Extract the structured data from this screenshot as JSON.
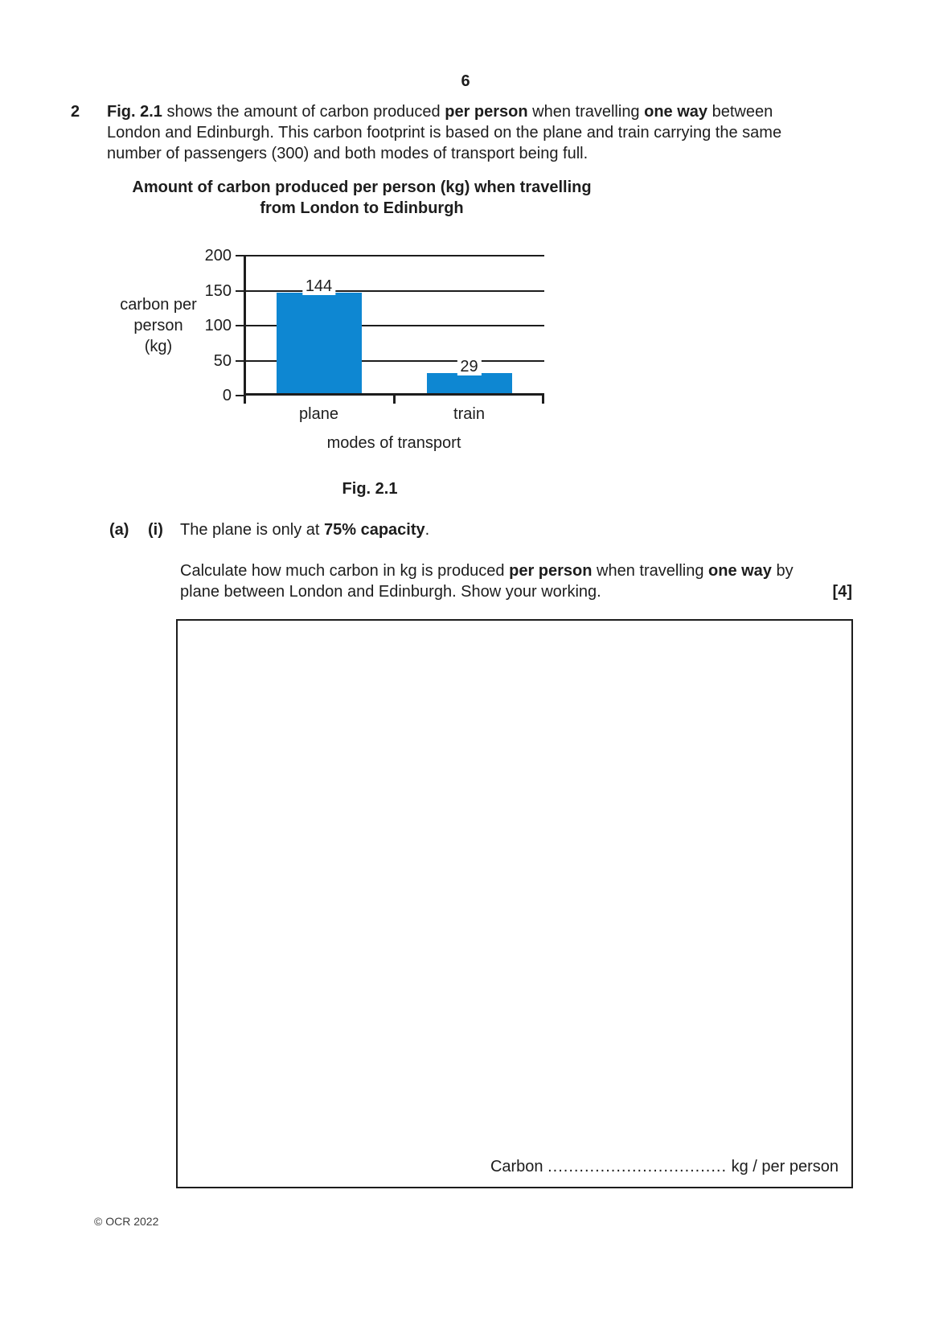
{
  "page": {
    "number": "6",
    "footer": "© OCR 2022"
  },
  "question": {
    "number": "2",
    "intro_lines": [
      [
        {
          "t": "Fig. 2.1",
          "b": true
        },
        {
          "t": " shows the amount of carbon produced ",
          "b": false
        },
        {
          "t": "per person",
          "b": true
        },
        {
          "t": " when travelling ",
          "b": false
        },
        {
          "t": "one way",
          "b": true
        },
        {
          "t": " between",
          "b": false
        }
      ],
      [
        {
          "t": "London and Edinburgh. This carbon footprint is based on the plane and train carrying the same",
          "b": false
        }
      ],
      [
        {
          "t": "number of passengers (300) and both modes of transport being full.",
          "b": false
        }
      ]
    ]
  },
  "chart_data": {
    "type": "bar",
    "title": "Amount of carbon produced per person (kg) when travelling from London to Edinburgh",
    "title_lines": [
      "Amount of carbon produced per person (kg) when travelling",
      "from London to Edinburgh"
    ],
    "ylabel": "carbon per person (kg)",
    "ylabel_lines": [
      "carbon per",
      "person",
      "(kg)"
    ],
    "xlabel": "modes of transport",
    "categories": [
      "plane",
      "train"
    ],
    "values": [
      144,
      29
    ],
    "yticks": [
      0,
      50,
      100,
      150,
      200
    ],
    "ylim": [
      0,
      200
    ],
    "grid": true,
    "legend": "none",
    "bar_color": "#0e87d2",
    "axis_color": "#1d1d1d"
  },
  "figure": {
    "caption": "Fig. 2.1"
  },
  "part_a": {
    "label_a": "(a)",
    "label_i": "(i)",
    "statement": [
      {
        "t": "The plane is only at ",
        "b": false
      },
      {
        "t": "75% capacity",
        "b": true
      },
      {
        "t": ".",
        "b": false
      }
    ],
    "instruction_lines": [
      [
        {
          "t": "Calculate how much carbon in kg is produced ",
          "b": false
        },
        {
          "t": "per person",
          "b": true
        },
        {
          "t": " when travelling ",
          "b": false
        },
        {
          "t": "one way",
          "b": true
        },
        {
          "t": " by",
          "b": false
        }
      ],
      [
        {
          "t": "plane between London and Edinburgh. Show your working.",
          "b": false
        }
      ]
    ],
    "marks": "[4]",
    "answer": {
      "prefix": "Carbon ",
      "dots": "..................................",
      "suffix": " kg / per person"
    }
  }
}
